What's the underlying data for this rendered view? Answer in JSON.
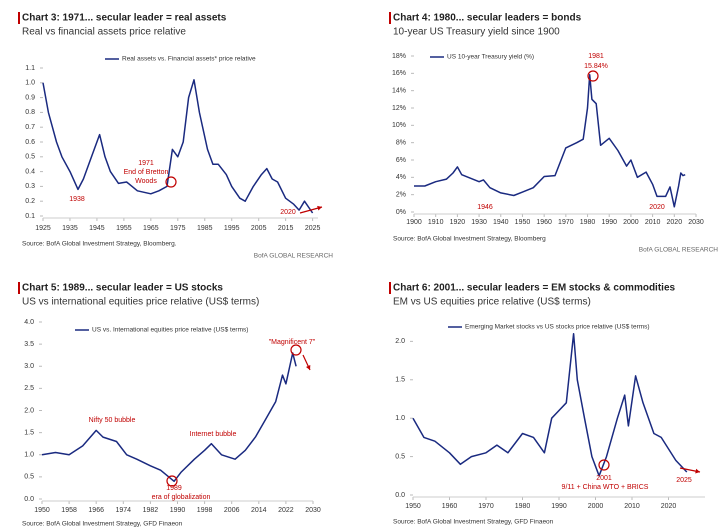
{
  "chart_data": [
    {
      "type": "line",
      "title": "Chart 3: 1971... secular leader = real assets",
      "subtitle": "Real vs financial assets price relative",
      "source": "Source: BofA Global Investment Strategy, Bloomberg.",
      "brand": "BofA GLOBAL RESEARCH",
      "x": [
        1925,
        1927,
        1930,
        1932,
        1935,
        1938,
        1940,
        1943,
        1946,
        1948,
        1950,
        1953,
        1956,
        1960,
        1965,
        1968,
        1971,
        1973,
        1975,
        1977,
        1979,
        1981,
        1983,
        1986,
        1988,
        1990,
        1993,
        1995,
        1998,
        2000,
        2003,
        2006,
        2008,
        2010,
        2012,
        2015,
        2018,
        2020,
        2022,
        2025
      ],
      "series": [
        {
          "name": "Real assets vs. Financial assets* price relative",
          "color": "#1a2a80",
          "values": [
            1.0,
            0.8,
            0.6,
            0.5,
            0.4,
            0.28,
            0.35,
            0.5,
            0.65,
            0.5,
            0.4,
            0.32,
            0.33,
            0.27,
            0.25,
            0.27,
            0.3,
            0.55,
            0.5,
            0.6,
            0.9,
            1.02,
            0.8,
            0.55,
            0.45,
            0.45,
            0.38,
            0.3,
            0.22,
            0.2,
            0.3,
            0.38,
            0.42,
            0.35,
            0.33,
            0.22,
            0.18,
            0.14,
            0.2,
            0.12
          ]
        }
      ],
      "xlim": [
        1925,
        2027
      ],
      "xticks": [
        1925,
        1935,
        1945,
        1955,
        1965,
        1975,
        1985,
        1995,
        2005,
        2015,
        2025
      ],
      "ylim": [
        0.1,
        1.1
      ],
      "yticks": [
        0.1,
        0.2,
        0.3,
        0.4,
        0.5,
        0.6,
        0.7,
        0.8,
        0.9,
        {
          "value": 1,
          "label": "1.0"
        },
        1.1
      ],
      "annotations": [
        {
          "lines": [
            "1938"
          ]
        },
        {
          "lines": [
            "1971",
            "End of Bretton",
            "Woods"
          ]
        },
        {
          "lines": [
            "2020"
          ]
        }
      ]
    },
    {
      "type": "line",
      "title": "Chart 4: 1980... secular leaders = bonds",
      "subtitle": "10-year US Treasury yield since 1900",
      "source": "Source: BofA Global Investment Strategy, Bloomberg",
      "brand": "BofA GLOBAL RESEARCH",
      "x": [
        1900,
        1905,
        1910,
        1915,
        1918,
        1920,
        1922,
        1925,
        1930,
        1932,
        1935,
        1940,
        1946,
        1950,
        1955,
        1960,
        1965,
        1970,
        1975,
        1978,
        1980,
        1981,
        1982,
        1984,
        1986,
        1990,
        1994,
        1998,
        2000,
        2003,
        2007,
        2010,
        2012,
        2016,
        2018,
        2020,
        2022,
        2023,
        2024,
        2025
      ],
      "series": [
        {
          "name": "US 10-year Treasury yield (%)",
          "color": "#1a2a80",
          "values": [
            3.0,
            3.0,
            3.5,
            3.8,
            4.5,
            5.2,
            4.3,
            4.0,
            3.5,
            3.7,
            2.8,
            2.2,
            1.9,
            2.3,
            2.8,
            4.1,
            4.2,
            7.4,
            8.0,
            8.4,
            12.0,
            15.84,
            13.0,
            12.5,
            7.7,
            8.5,
            7.1,
            5.3,
            6.0,
            4.0,
            4.6,
            3.2,
            1.8,
            1.8,
            2.9,
            0.6,
            3.0,
            4.5,
            4.2,
            4.3
          ]
        }
      ],
      "xlim": [
        1900,
        2030
      ],
      "xticks": [
        1900,
        1910,
        1920,
        1930,
        1940,
        1950,
        1960,
        1970,
        1980,
        1990,
        2000,
        2010,
        2020,
        2030
      ],
      "ylim": [
        0,
        18
      ],
      "yticks": [
        {
          "value": 0,
          "label": "0%"
        },
        {
          "value": 2,
          "label": "2%"
        },
        {
          "value": 4,
          "label": "4%"
        },
        {
          "value": 6,
          "label": "6%"
        },
        {
          "value": 8,
          "label": "8%"
        },
        {
          "value": 10,
          "label": "10%"
        },
        {
          "value": 12,
          "label": "12%"
        },
        {
          "value": 14,
          "label": "14%"
        },
        {
          "value": 16,
          "label": "16%"
        },
        {
          "value": 18,
          "label": "18%"
        }
      ],
      "annotations": [
        {
          "lines": [
            "1981",
            "15.84%"
          ]
        },
        {
          "lines": [
            "1946"
          ]
        },
        {
          "lines": [
            "2020"
          ]
        }
      ]
    },
    {
      "type": "line",
      "title": "Chart 5: 1989... secular leader = US stocks",
      "subtitle": "US vs international equities price relative (US$ terms)",
      "source": "Source: BofA Global Investment Strategy, GFD Finaeon",
      "x": [
        1950,
        1954,
        1958,
        1962,
        1966,
        1968,
        1972,
        1975,
        1978,
        1982,
        1985,
        1989,
        1991,
        1995,
        1998,
        2000,
        2003,
        2007,
        2010,
        2013,
        2016,
        2019,
        2021,
        2022,
        2024,
        2025
      ],
      "series": [
        {
          "name": "US vs. International equities price relative (US$ terms)",
          "color": "#1a2a80",
          "values": [
            1.0,
            1.05,
            1.0,
            1.2,
            1.55,
            1.4,
            1.3,
            1.0,
            0.9,
            0.75,
            0.65,
            0.4,
            0.6,
            0.9,
            1.1,
            1.25,
            1.0,
            0.9,
            1.1,
            1.4,
            1.8,
            2.2,
            2.8,
            2.6,
            3.3,
            3.0
          ]
        }
      ],
      "xlim": [
        1950,
        2030
      ],
      "xticks": [
        1950,
        1958,
        1966,
        1974,
        1982,
        1990,
        1998,
        2006,
        2014,
        2022,
        2030
      ],
      "ylim": [
        0,
        4
      ],
      "yticks": [
        {
          "value": 0,
          "label": "0.0"
        },
        0.5,
        {
          "value": 1,
          "label": "1.0"
        },
        1.5,
        {
          "value": 2,
          "label": "2.0"
        },
        2.5,
        {
          "value": 3,
          "label": "3.0"
        },
        3.5,
        {
          "value": 4,
          "label": "4.0"
        }
      ],
      "annotations": [
        {
          "lines": [
            "Nifty 50 bubble"
          ]
        },
        {
          "lines": [
            "Internet bubble"
          ]
        },
        {
          "lines": [
            "1989",
            "era of globalization"
          ]
        },
        {
          "lines": [
            "\"Magnificent 7\""
          ]
        }
      ]
    },
    {
      "type": "line",
      "title": "Chart 6: 2001... secular leaders = EM stocks & commodities",
      "subtitle": "EM vs US equities price relative (US$ terms)",
      "source": "Source: BofA Global Investment Strategy, GFD Finaeon",
      "x": [
        1950,
        1953,
        1956,
        1960,
        1963,
        1966,
        1970,
        1973,
        1976,
        1980,
        1983,
        1986,
        1988,
        1990,
        1992,
        1994,
        1995,
        1997,
        1999,
        2001,
        2003,
        2006,
        2008,
        2009,
        2011,
        2013,
        2016,
        2018,
        2020,
        2022,
        2025
      ],
      "series": [
        {
          "name": "Emerging Market stocks vs US stocks price relative (US$ terms)",
          "color": "#1a2a80",
          "values": [
            1.0,
            0.75,
            0.7,
            0.55,
            0.4,
            0.5,
            0.55,
            0.65,
            0.55,
            0.8,
            0.75,
            0.55,
            1.0,
            1.1,
            1.2,
            2.1,
            1.5,
            1.0,
            0.5,
            0.25,
            0.5,
            1.0,
            1.3,
            0.9,
            1.55,
            1.2,
            0.8,
            0.75,
            0.6,
            0.45,
            0.3
          ]
        }
      ],
      "xlim": [
        1950,
        2030
      ],
      "xticks": [
        1950,
        1960,
        1970,
        1980,
        1990,
        2000,
        2010,
        2020
      ],
      "ylim": [
        0,
        2.2
      ],
      "yticks": [
        {
          "value": 0,
          "label": "0.0"
        },
        0.5,
        {
          "value": 1,
          "label": "1.0"
        },
        1.5,
        {
          "value": 2,
          "label": "2.0"
        }
      ],
      "annotations": [
        {
          "lines": [
            "2001",
            "9/11 + China WTO + BRICS"
          ]
        },
        {
          "lines": [
            "2025"
          ]
        }
      ]
    }
  ]
}
